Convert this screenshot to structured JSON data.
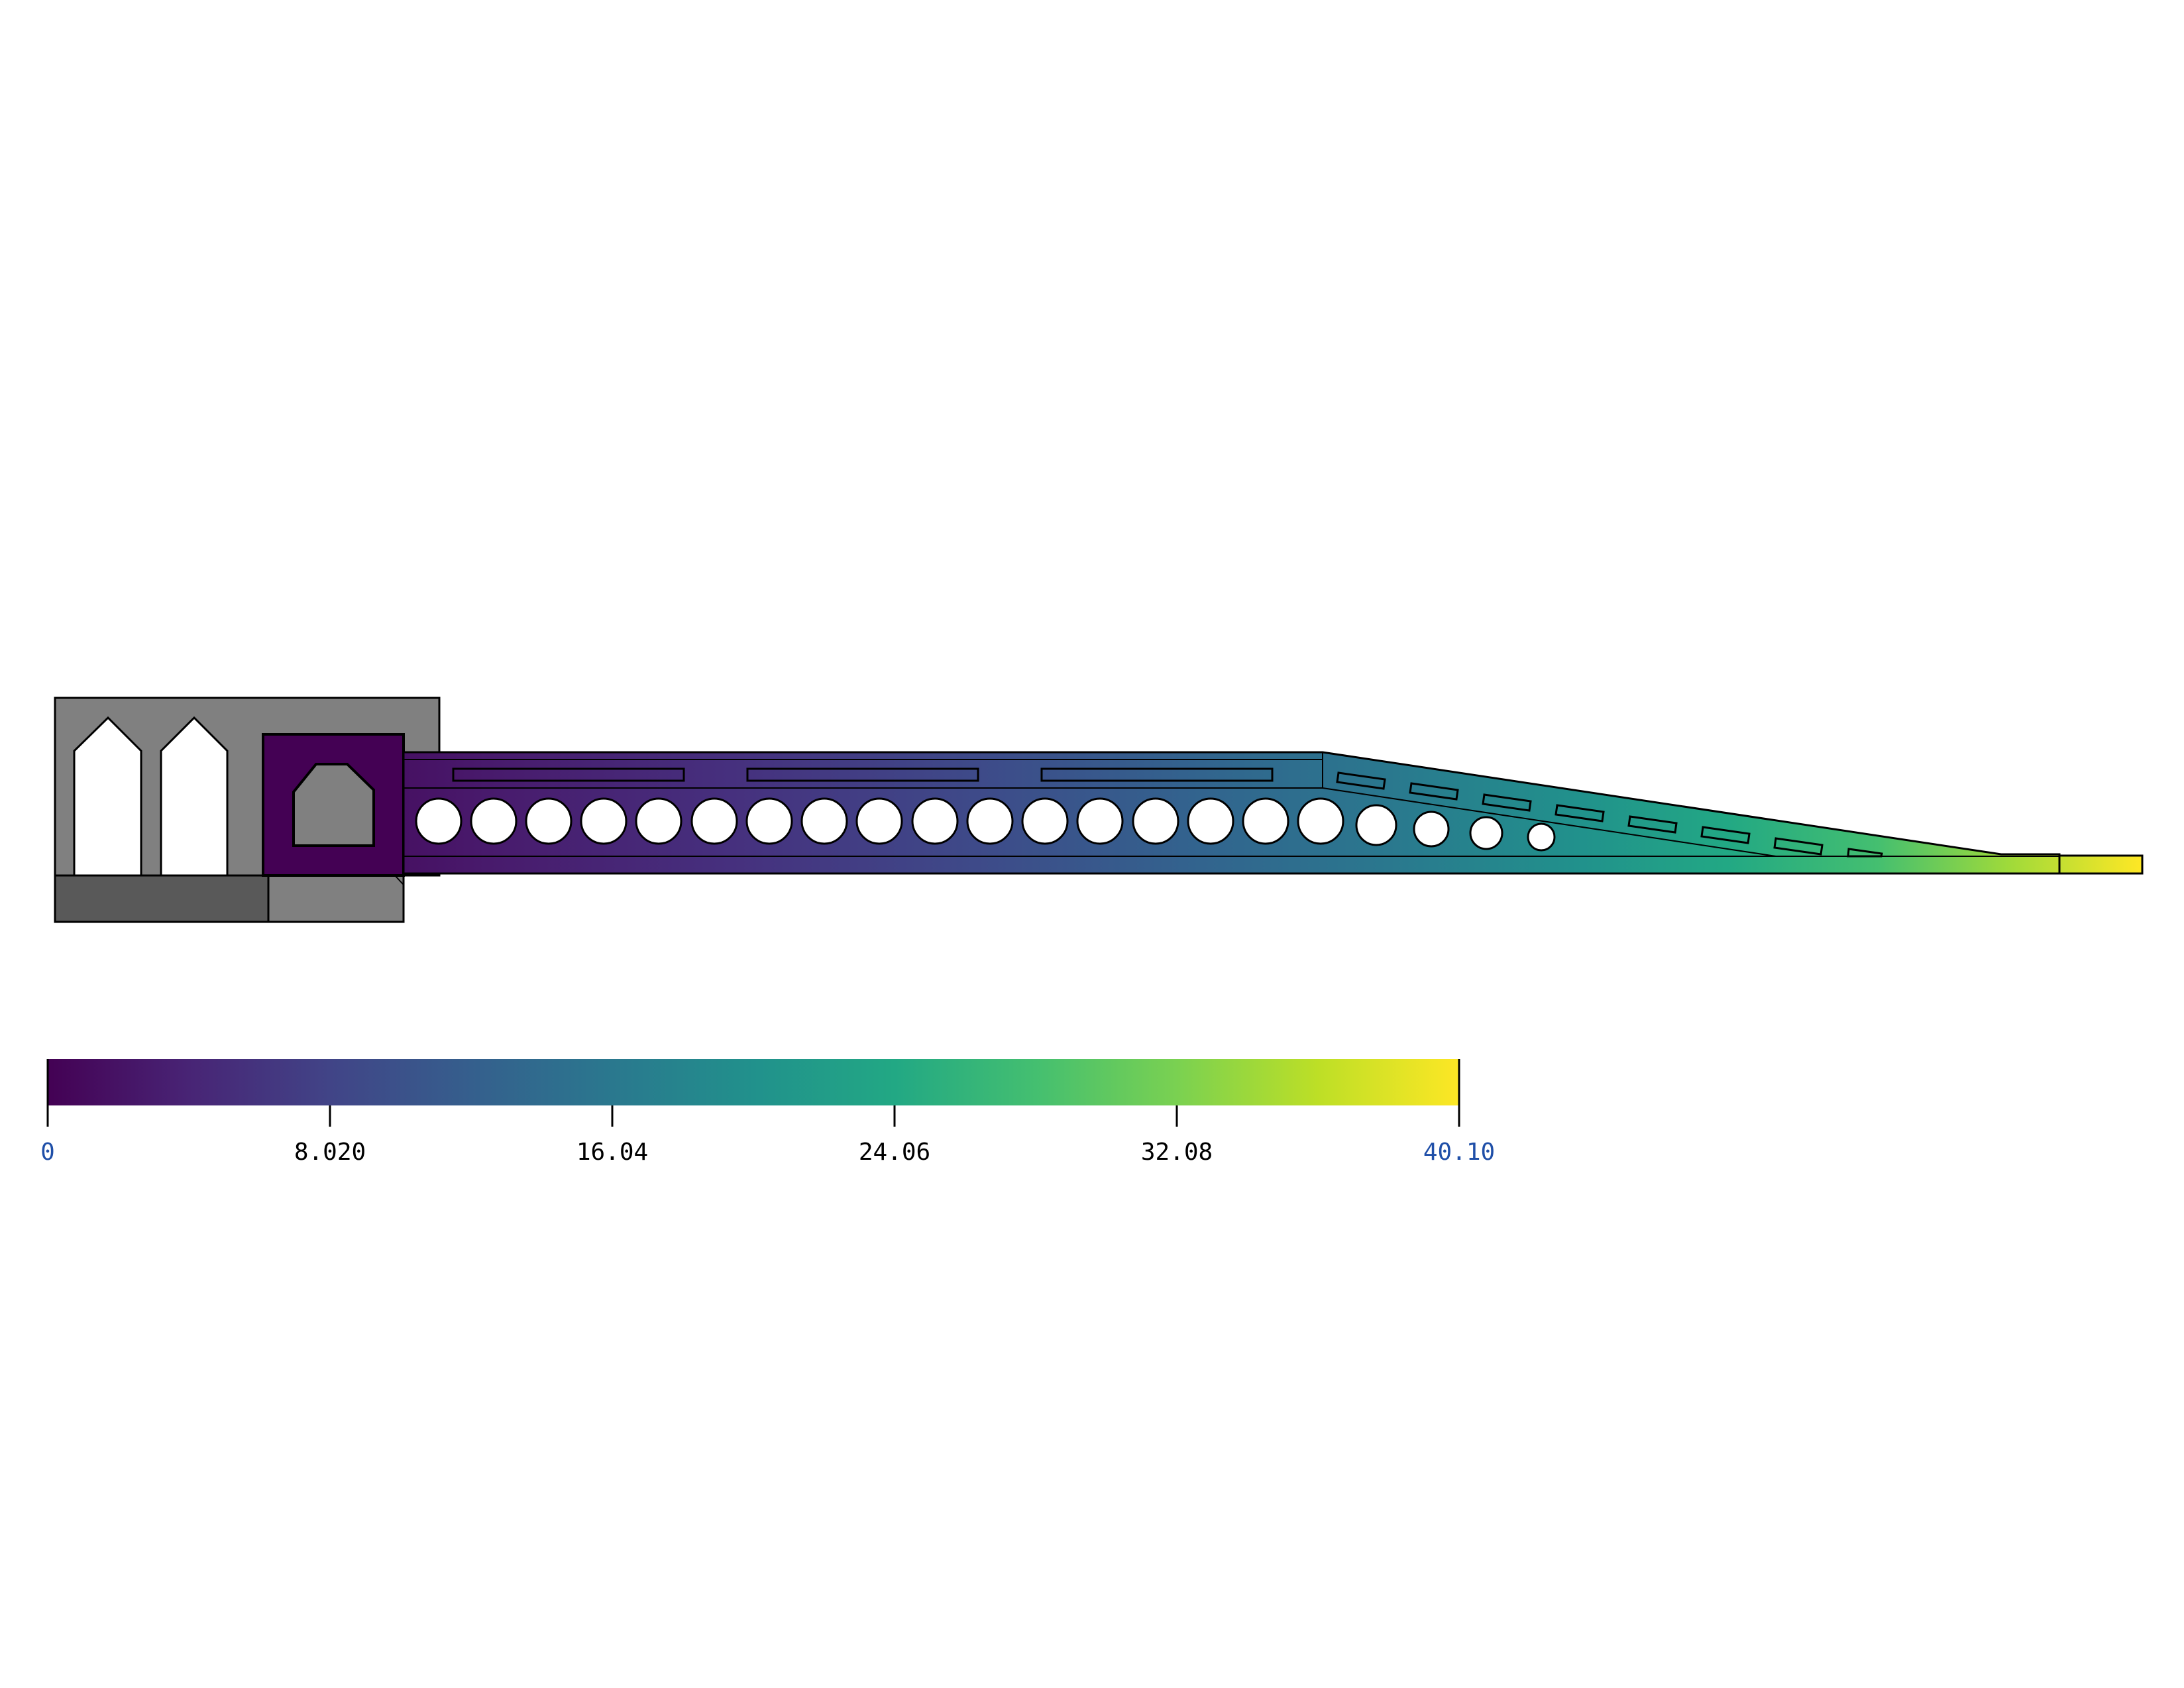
{
  "colorbar": {
    "min_label": "0",
    "max_label": "40.10",
    "min_value": 0,
    "max_value": 40.1,
    "tick_labels": [
      "8.020",
      "16.04",
      "24.06",
      "32.08"
    ],
    "tick_values": [
      8.02,
      16.04,
      24.06,
      32.08
    ],
    "colormap": "viridis",
    "end_label_color": "#1f4fa8",
    "tick_label_color": "#000000"
  },
  "model": {
    "fixed_support_color": "#808080",
    "fixed_support_dark_color": "#595959",
    "hole_color": "#ffffff",
    "outline_color": "#000000",
    "circular_holes_count": 21,
    "slanted_slots_count": 8,
    "top_slots_count": 3
  }
}
